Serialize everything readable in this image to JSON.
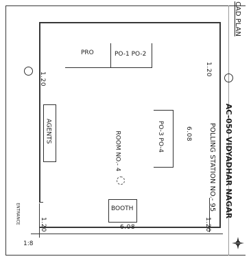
{
  "plan": {
    "sheet_label": "CAD PLAN",
    "title_line1": "AC-050 VIDYADHAR NAGAR",
    "title_line2": "POLLING STATION NO.- 95",
    "room_label": "ROOM NO.- 4",
    "rooms": {
      "pro": "PRO",
      "po1_po2": "PO-1  PO-2",
      "agents": "AGENTS",
      "po3_po4": "PO-3  PO-4",
      "booth": "BOOTH"
    },
    "dimensions": {
      "top_left_side": "1.20",
      "top_right_side": "1.20",
      "right_length": "6.08",
      "bottom_length": "6.08",
      "bottom_left": "1.20",
      "bottom_right": "1.20"
    },
    "entrance_label": "ENTRANCE",
    "scale_mark": "1:8"
  }
}
